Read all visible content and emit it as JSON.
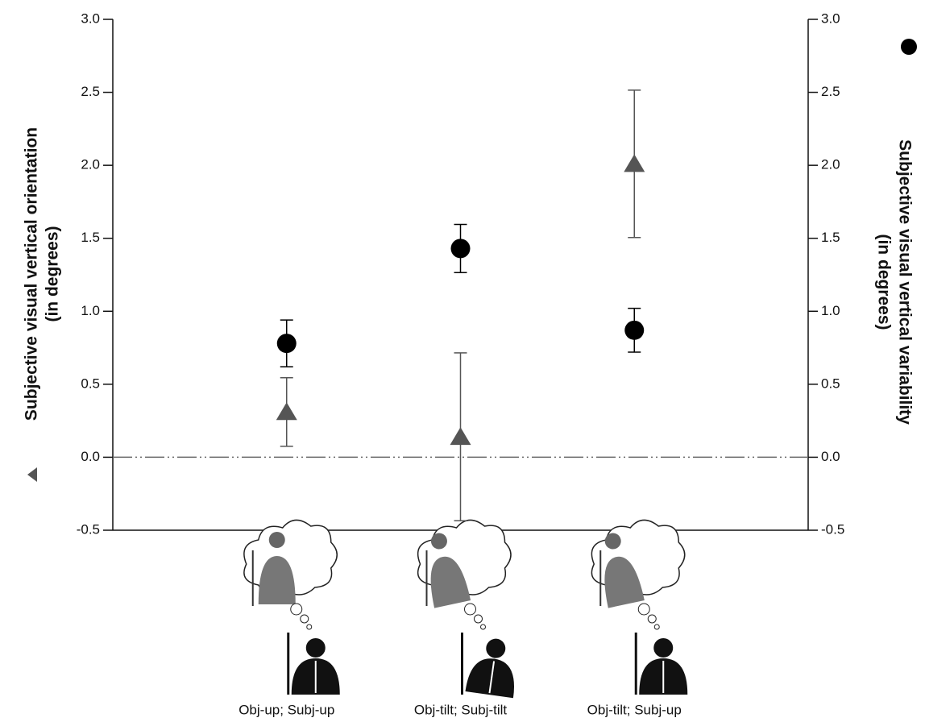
{
  "chart_data": {
    "type": "errorbar-dual",
    "y_label": [
      "Subjective visual vertical orientation",
      "(in degrees)"
    ],
    "y2_label": [
      "Subjective visual vertical variability",
      "(in degrees)"
    ],
    "categories": [
      "Obj-up; Subj-up",
      "Obj-tilt; Subj-tilt",
      "Obj-tilt; Subj-up"
    ],
    "series": [
      {
        "marker": "triangle",
        "color": "#555555",
        "axis": "y",
        "values": [
          0.31,
          0.14,
          2.01
        ],
        "errors": [
          0.235,
          0.575,
          0.505
        ]
      },
      {
        "marker": "circle",
        "color": "#000000",
        "axis": "y2",
        "values": [
          0.78,
          1.43,
          0.87
        ],
        "errors": [
          0.16,
          0.165,
          0.15
        ]
      }
    ],
    "ylim": [
      -0.5,
      3.0
    ],
    "yticks": [
      -0.5,
      {
        "value": 0,
        "label": "0.0"
      },
      0.5,
      {
        "value": 1,
        "label": "1.0"
      },
      1.5,
      {
        "value": 2,
        "label": "2.0"
      },
      2.5,
      {
        "value": 3,
        "label": "3.0"
      }
    ],
    "y2lim": [
      -0.5,
      3.0
    ],
    "y2ticks": [
      -0.5,
      {
        "value": 0,
        "label": "0.0"
      },
      0.5,
      {
        "value": 1,
        "label": "1.0"
      },
      1.5,
      {
        "value": 2,
        "label": "2.0"
      },
      2.5,
      {
        "value": 3,
        "label": "3.0"
      }
    ],
    "reference_line": 0
  }
}
